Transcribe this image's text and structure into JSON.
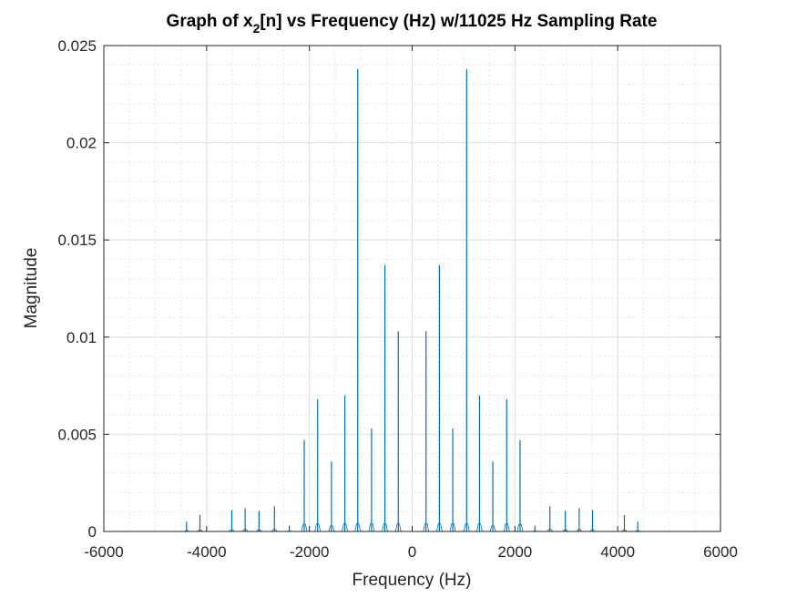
{
  "chart_data": {
    "type": "line",
    "title": "Graph of x_2[n] vs Frequency (Hz) w/11025 Hz Sampling Rate",
    "title_parts": {
      "pre": "Graph of x",
      "sub": "2",
      "post": "[n] vs Frequency (Hz) w/11025 Hz Sampling Rate"
    },
    "xlabel": "Frequency (Hz)",
    "ylabel": "Magnitude",
    "xlim": [
      -6000,
      6000
    ],
    "ylim": [
      0,
      0.025
    ],
    "xticks": [
      -6000,
      -4000,
      -2000,
      0,
      2000,
      4000,
      6000
    ],
    "xtick_labels": [
      "-6000",
      "-4000",
      "-2000",
      "0",
      "2000",
      "4000",
      "6000"
    ],
    "yticks": [
      0,
      0.005,
      0.01,
      0.015,
      0.02,
      0.025
    ],
    "ytick_labels": [
      "0",
      "0.005",
      "0.01",
      "0.015",
      "0.02",
      "0.025"
    ],
    "grid": "on",
    "minor_grid": "on",
    "line_color": "#0072bd",
    "signal_range": [
      -5512.5,
      5512.5
    ],
    "peaks": [
      {
        "x": -4390,
        "y": 0.0005
      },
      {
        "x": -4130,
        "y": 0.00085
      },
      {
        "x": -3510,
        "y": 0.0011
      },
      {
        "x": -3250,
        "y": 0.0012
      },
      {
        "x": -2980,
        "y": 0.00105
      },
      {
        "x": -2680,
        "y": 0.0013
      },
      {
        "x": -2390,
        "y": 0.0003
      },
      {
        "x": -2100,
        "y": 0.0047
      },
      {
        "x": -1840,
        "y": 0.0068
      },
      {
        "x": -1570,
        "y": 0.0036
      },
      {
        "x": -1310,
        "y": 0.007
      },
      {
        "x": -1060,
        "y": 0.0238
      },
      {
        "x": -790,
        "y": 0.0053
      },
      {
        "x": -530,
        "y": 0.0137
      },
      {
        "x": -270,
        "y": 0.0103
      },
      {
        "x": 270,
        "y": 0.0103
      },
      {
        "x": 530,
        "y": 0.0137
      },
      {
        "x": 790,
        "y": 0.0053
      },
      {
        "x": 1060,
        "y": 0.0238
      },
      {
        "x": 1310,
        "y": 0.007
      },
      {
        "x": 1570,
        "y": 0.0036
      },
      {
        "x": 1840,
        "y": 0.0068
      },
      {
        "x": 2100,
        "y": 0.0047
      },
      {
        "x": 2390,
        "y": 0.0003
      },
      {
        "x": 2680,
        "y": 0.0013
      },
      {
        "x": 2980,
        "y": 0.00105
      },
      {
        "x": 3250,
        "y": 0.0012
      },
      {
        "x": 3510,
        "y": 0.0011
      },
      {
        "x": 4130,
        "y": 0.00085
      },
      {
        "x": 4390,
        "y": 0.0005
      }
    ]
  }
}
